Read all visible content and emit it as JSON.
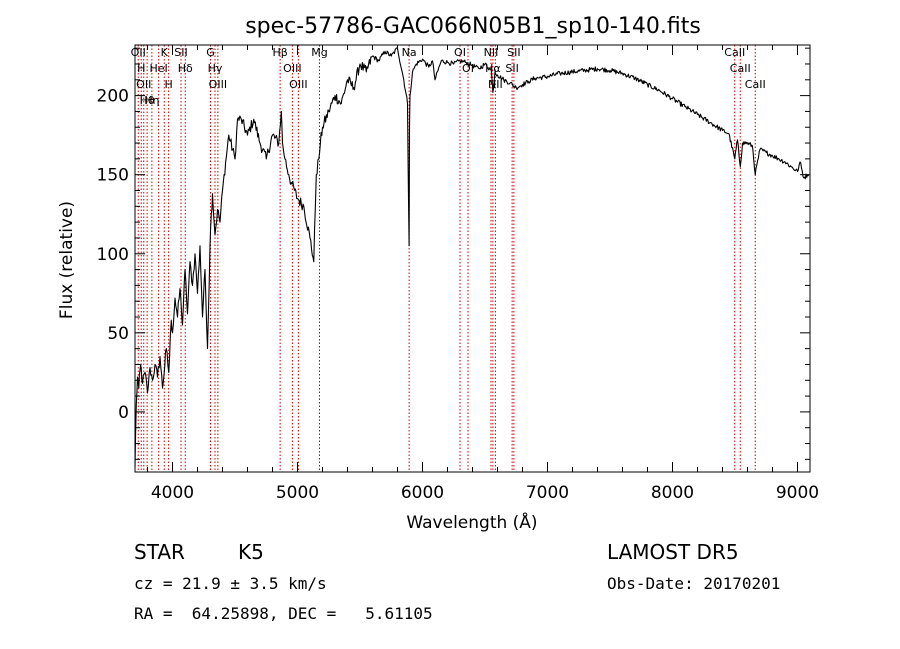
{
  "chart_data": {
    "type": "line",
    "title": "spec-57786-GAC066N05B1_sp10-140.fits",
    "xlabel": "Wavelength (Å)",
    "ylabel": "Flux (relative)",
    "xlim": [
      3700,
      9100
    ],
    "ylim": [
      -38,
      232
    ],
    "x_ticks": [
      4000,
      5000,
      6000,
      7000,
      8000,
      9000
    ],
    "x_tick_labels": [
      "4000",
      "5000",
      "6000",
      "7000",
      "8000",
      "9000"
    ],
    "y_ticks": [
      0,
      50,
      100,
      150,
      200
    ],
    "y_tick_labels": [
      "0",
      "50",
      "100",
      "150",
      "200"
    ],
    "grid": false,
    "line_color": "#000000",
    "marker_color": "#cc0000",
    "series": [
      {
        "x": [
          3700,
          3710,
          3720,
          3730,
          3745,
          3760,
          3780,
          3800,
          3820,
          3840,
          3860,
          3880,
          3900,
          3920,
          3950,
          3970,
          3990,
          4000,
          4020,
          4040,
          4060,
          4080,
          4100,
          4120,
          4140,
          4160,
          4180,
          4200,
          4220,
          4240,
          4260,
          4280,
          4300,
          4310,
          4320,
          4340,
          4360,
          4380,
          4400,
          4450,
          4500,
          4520,
          4550,
          4600,
          4650,
          4700,
          4750,
          4800,
          4850,
          4870,
          4880,
          4900,
          4930,
          4950,
          5000,
          5050,
          5100,
          5130,
          5150,
          5170,
          5183,
          5200,
          5250,
          5300,
          5350,
          5400,
          5450,
          5500,
          5550,
          5600,
          5650,
          5700,
          5750,
          5800,
          5850,
          5880,
          5890,
          5893,
          5896,
          5900,
          5920,
          5950,
          6000,
          6050,
          6080,
          6100,
          6150,
          6200,
          6250,
          6300,
          6350,
          6400,
          6450,
          6500,
          6550,
          6563,
          6580,
          6600,
          6650,
          6700,
          6750,
          6800,
          6850,
          6900,
          7000,
          7100,
          7200,
          7300,
          7400,
          7500,
          7600,
          7700,
          7800,
          7900,
          8000,
          8100,
          8200,
          8300,
          8400,
          8450,
          8498,
          8520,
          8542,
          8560,
          8600,
          8640,
          8662,
          8700,
          8750,
          8800,
          8850,
          8900,
          8950,
          9000,
          9020,
          9050,
          9080,
          9090
        ],
        "y": [
          -35,
          5,
          22,
          15,
          30,
          18,
          25,
          12,
          28,
          20,
          30,
          22,
          35,
          15,
          40,
          25,
          58,
          50,
          72,
          60,
          78,
          55,
          90,
          62,
          95,
          80,
          100,
          75,
          105,
          60,
          90,
          40,
          105,
          125,
          138,
          112,
          128,
          120,
          140,
          175,
          160,
          185,
          185,
          175,
          185,
          170,
          160,
          175,
          170,
          190,
          170,
          160,
          150,
          145,
          135,
          130,
          110,
          95,
          150,
          160,
          170,
          180,
          190,
          200,
          195,
          210,
          205,
          220,
          215,
          225,
          222,
          228,
          225,
          230,
          210,
          195,
          120,
          105,
          180,
          200,
          215,
          220,
          223,
          218,
          222,
          210,
          222,
          221,
          220,
          222,
          221,
          219,
          217,
          220,
          216,
          202,
          215,
          213,
          210,
          208,
          205,
          207,
          209,
          211,
          212,
          214,
          215,
          216,
          217,
          216,
          214,
          211,
          207,
          203,
          198,
          193,
          188,
          183,
          178,
          176,
          160,
          172,
          155,
          170,
          170,
          168,
          150,
          166,
          164,
          162,
          160,
          158,
          155,
          152,
          158,
          148,
          150,
          150
        ]
      }
    ],
    "line_markers": [
      {
        "x": 3726,
        "label": "OII"
      },
      {
        "x": 3750,
        "label": "H"
      },
      {
        "x": 3770,
        "label": "OII"
      },
      {
        "x": 3797,
        "label": "Hθ"
      },
      {
        "x": 3835,
        "label": "Hη"
      },
      {
        "x": 3889,
        "label": "HeI"
      },
      {
        "x": 3934,
        "label": "K"
      },
      {
        "x": 3969,
        "label": "H"
      },
      {
        "x": 4068,
        "label": "SII"
      },
      {
        "x": 4102,
        "label": "Hδ"
      },
      {
        "x": 4304,
        "label": "G"
      },
      {
        "x": 4340,
        "label": "Hγ"
      },
      {
        "x": 4363,
        "label": "OIII"
      },
      {
        "x": 4861,
        "label": "Hβ"
      },
      {
        "x": 4959,
        "label": "OIII"
      },
      {
        "x": 5007,
        "label": "OIII"
      },
      {
        "x": 5176,
        "label": "Mg"
      },
      {
        "x": 5893,
        "label": "Na"
      },
      {
        "x": 6300,
        "label": "OI"
      },
      {
        "x": 6364,
        "label": "OI"
      },
      {
        "x": 6548,
        "label": "NII"
      },
      {
        "x": 6563,
        "label": "Hα"
      },
      {
        "x": 6583,
        "label": "NII"
      },
      {
        "x": 6717,
        "label": "SII"
      },
      {
        "x": 6731,
        "label": "SII"
      },
      {
        "x": 8498,
        "label": "CaII"
      },
      {
        "x": 8542,
        "label": "CaII"
      },
      {
        "x": 8662,
        "label": "CaII"
      }
    ]
  },
  "info": {
    "object_class": "STAR",
    "object_subclass": "K5",
    "redshift_text": "cz = 21.9 ± 3.5 km/s",
    "coordinates_text": "RA =  64.25898, DEC =   5.61105",
    "survey": "LAMOST DR5",
    "obs_date": "Obs-Date: 20170201"
  }
}
